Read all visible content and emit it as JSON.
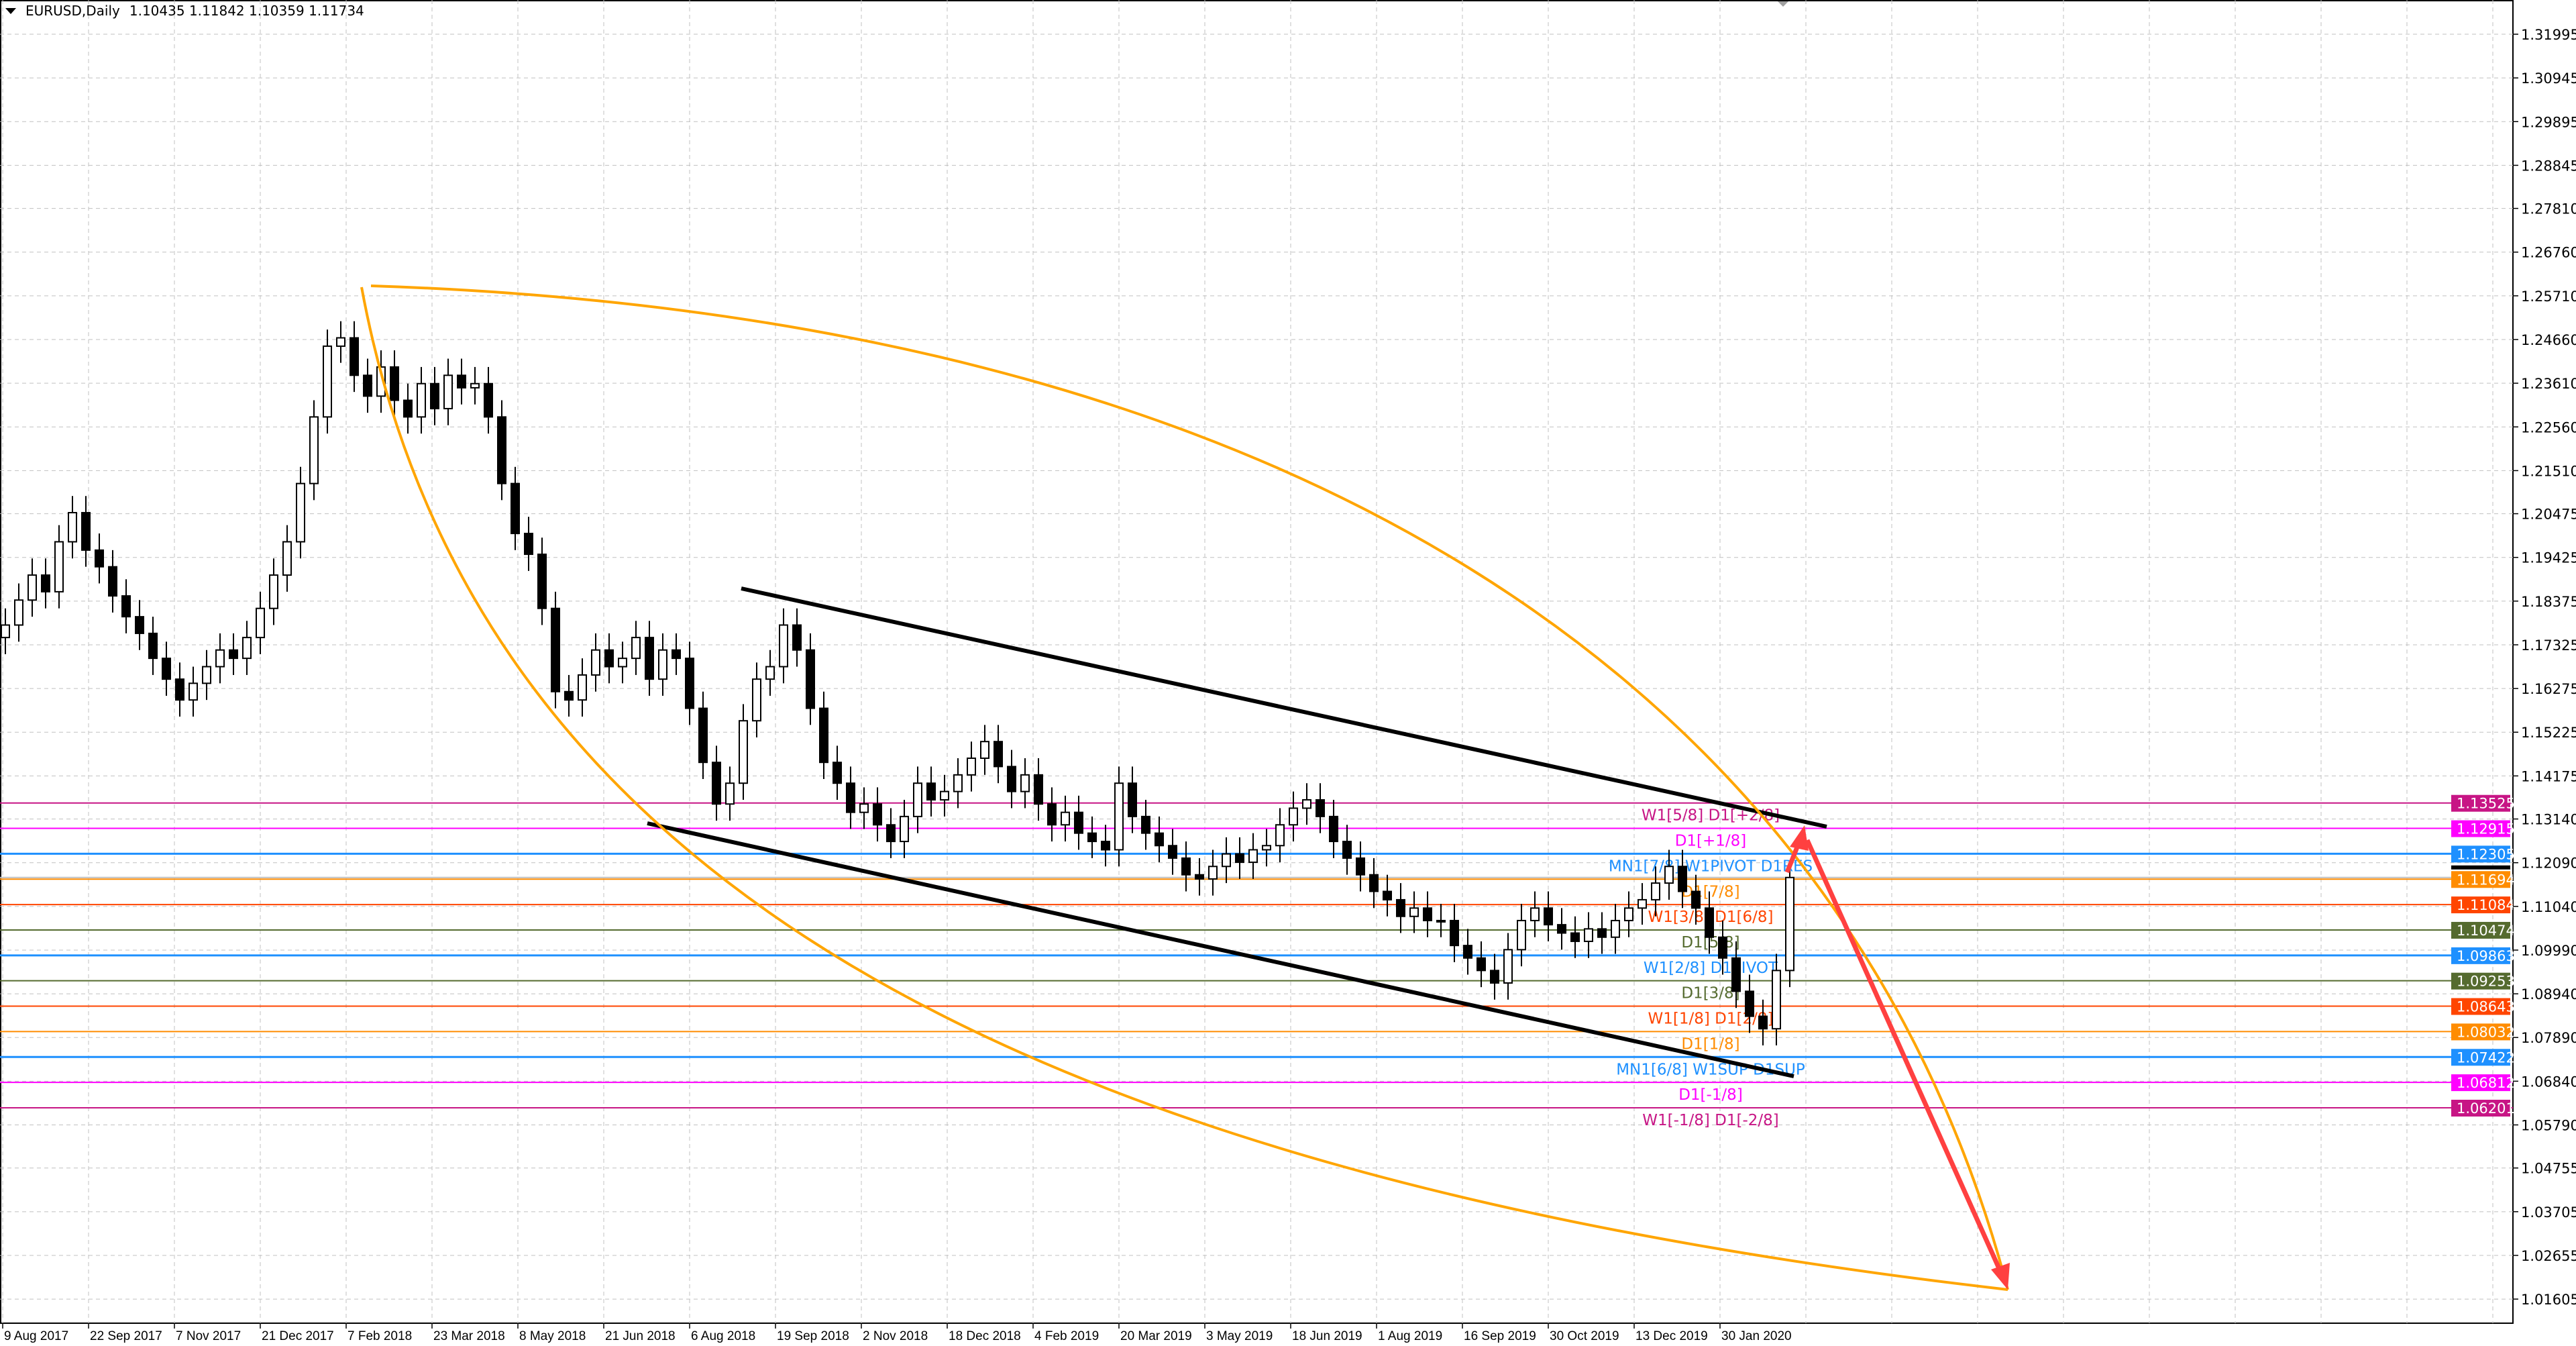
{
  "header": {
    "symbol": "EURUSD,Daily",
    "ohlc": "1.10435 1.11842 1.10359 1.11734"
  },
  "chart_data": {
    "type": "candlestick",
    "title": "EURUSD,Daily",
    "grid": true,
    "y_axis_position": "right",
    "ylim": [
      1.0135,
      1.3245
    ],
    "y_ticks": [
      "1.31995",
      "1.30945",
      "1.29895",
      "1.28845",
      "1.27810",
      "1.26760",
      "1.25710",
      "1.24660",
      "1.23610",
      "1.22560",
      "1.21510",
      "1.20475",
      "1.19425",
      "1.18375",
      "1.17325",
      "1.16275",
      "1.15225",
      "1.14175",
      "1.13140",
      "1.12090",
      "1.11040",
      "1.09990",
      "1.08940",
      "1.07890",
      "1.06840",
      "1.05790",
      "1.04755",
      "1.03705",
      "1.02655",
      "1.01605"
    ],
    "x_ticks": [
      "9 Aug 2017",
      "22 Sep 2017",
      "7 Nov 2017",
      "21 Dec 2017",
      "7 Feb 2018",
      "23 Mar 2018",
      "8 May 2018",
      "21 Jun 2018",
      "6 Aug 2018",
      "19 Sep 2018",
      "2 Nov 2018",
      "18 Dec 2018",
      "4 Feb 2019",
      "20 Mar 2019",
      "3 May 2019",
      "18 Jun 2019",
      "1 Aug 2019",
      "16 Sep 2019",
      "30 Oct 2019",
      "13 Dec 2019",
      "30 Jan 2020"
    ],
    "first_open": 1.175,
    "closes": [
      1.178,
      1.184,
      1.19,
      1.186,
      1.198,
      1.205,
      1.196,
      1.192,
      1.185,
      1.18,
      1.176,
      1.17,
      1.165,
      1.16,
      1.164,
      1.168,
      1.172,
      1.17,
      1.175,
      1.182,
      1.19,
      1.198,
      1.212,
      1.228,
      1.245,
      1.247,
      1.238,
      1.233,
      1.24,
      1.232,
      1.228,
      1.236,
      1.23,
      1.238,
      1.235,
      1.236,
      1.228,
      1.212,
      1.2,
      1.195,
      1.182,
      1.162,
      1.16,
      1.166,
      1.172,
      1.168,
      1.17,
      1.175,
      1.165,
      1.172,
      1.17,
      1.158,
      1.145,
      1.135,
      1.14,
      1.155,
      1.165,
      1.168,
      1.178,
      1.172,
      1.158,
      1.145,
      1.14,
      1.133,
      1.135,
      1.13,
      1.126,
      1.132,
      1.14,
      1.136,
      1.138,
      1.142,
      1.146,
      1.15,
      1.144,
      1.138,
      1.142,
      1.135,
      1.13,
      1.133,
      1.128,
      1.126,
      1.124,
      1.14,
      1.132,
      1.128,
      1.125,
      1.122,
      1.118,
      1.117,
      1.12,
      1.123,
      1.121,
      1.124,
      1.125,
      1.13,
      1.134,
      1.136,
      1.132,
      1.126,
      1.122,
      1.118,
      1.114,
      1.112,
      1.108,
      1.11,
      1.107,
      1.107,
      1.101,
      1.098,
      1.095,
      1.092,
      1.1,
      1.107,
      1.11,
      1.106,
      1.104,
      1.102,
      1.105,
      1.103,
      1.107,
      1.11,
      1.112,
      1.116,
      1.12,
      1.114,
      1.11,
      1.103,
      1.098,
      1.09,
      1.084,
      1.081,
      1.095,
      1.11734
    ],
    "current_price": {
      "value": "1.11734",
      "color": "#000000"
    },
    "levels": [
      {
        "price": 1.13525,
        "tag": "1.13525",
        "label": "W1[5/8] D1[+2/8]",
        "color": "#c71585"
      },
      {
        "price": 1.12915,
        "tag": "1.12915",
        "label": "D1[+1/8]",
        "color": "#ff00ff"
      },
      {
        "price": 1.12305,
        "tag": "1.12305",
        "label": "MN1[7/8] W1PIVOT D1RES",
        "color": "#1e90ff"
      },
      {
        "price": 1.11694,
        "tag": "1.11694",
        "label": "D1[7/8]",
        "color": "#ff8c00"
      },
      {
        "price": 1.11084,
        "tag": "1.11084",
        "label": "W1[3/8] D1[6/8]",
        "color": "#ff4500"
      },
      {
        "price": 1.10474,
        "tag": "1.10474",
        "label": "D1[5/8]",
        "color": "#556b2f"
      },
      {
        "price": 1.09863,
        "tag": "1.09863",
        "label": "W1[2/8] D1PIVOT",
        "color": "#1e90ff"
      },
      {
        "price": 1.09253,
        "tag": "1.09253",
        "label": "D1[3/8]",
        "color": "#556b2f"
      },
      {
        "price": 1.08643,
        "tag": "1.08643",
        "label": "W1[1/8] D1[2/8]",
        "color": "#ff4500"
      },
      {
        "price": 1.08032,
        "tag": "1.08032",
        "label": "D1[1/8]",
        "color": "#ff8c00"
      },
      {
        "price": 1.07422,
        "tag": "1.07422",
        "label": "MN1[6/8] W1SUP D1SUP",
        "color": "#1e90ff"
      },
      {
        "price": 1.06812,
        "tag": "1.06812",
        "label": "D1[-1/8]",
        "color": "#ff00ff"
      },
      {
        "price": 1.06201,
        "tag": "1.06201",
        "label": "W1[-1/8] D1[-2/8]",
        "color": "#c71585"
      }
    ],
    "drawings": {
      "channel_color": "#000000",
      "arc_color": "#ffa500",
      "arrow_color": "#ff4040"
    }
  }
}
